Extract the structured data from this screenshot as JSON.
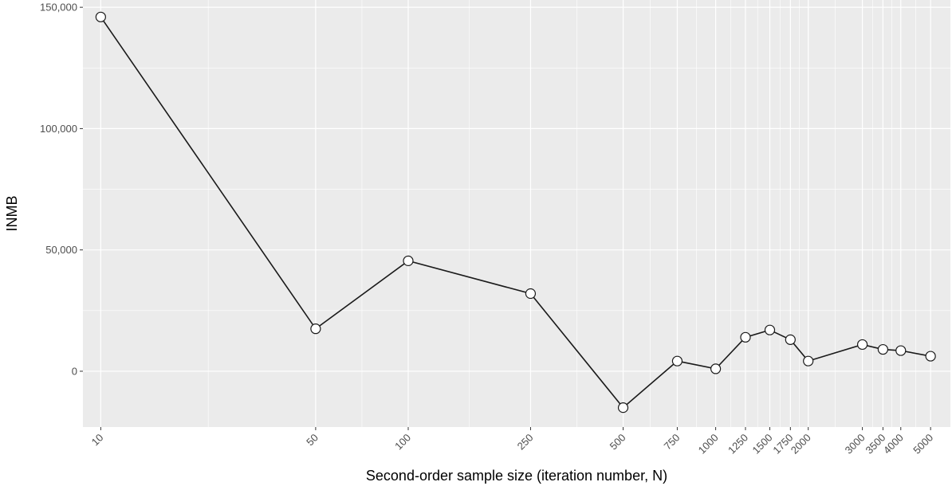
{
  "chart_data": {
    "type": "line",
    "xlabel": "Second-order sample size (iteration number, N)",
    "ylabel": "INMB",
    "x_scale": "log",
    "grid": true,
    "legend": "none",
    "xlim": [
      8.75,
      5800
    ],
    "ylim": [
      -23000,
      153000
    ],
    "x_ticks": [
      10,
      50,
      100,
      250,
      500,
      750,
      1000,
      1250,
      1500,
      1750,
      2000,
      3000,
      3500,
      4000,
      5000
    ],
    "x_tick_labels": [
      "10",
      "50",
      "100",
      "250",
      "500",
      "750",
      "1000",
      "1250",
      "1500",
      "1750",
      "2000",
      "3000",
      "3500",
      "4000",
      "5000"
    ],
    "y_ticks": [
      0,
      50000,
      100000,
      150000
    ],
    "y_tick_labels": [
      "0",
      "50,000",
      "100,000",
      "150,000"
    ],
    "series": [
      {
        "x": [
          10,
          50,
          100,
          250,
          500,
          750,
          1000,
          1250,
          1500,
          1750,
          2000,
          3000,
          3500,
          4000,
          5000
        ],
        "values": [
          146000,
          17500,
          45500,
          32000,
          -15000,
          4200,
          1000,
          14000,
          17000,
          13000,
          4200,
          11000,
          9000,
          8500,
          6200
        ]
      }
    ]
  },
  "colors": {
    "panel_background": "#EBEBEB",
    "grid_line": "#FFFFFF",
    "series_line": "#1A1A1A",
    "point_fill": "#FFFFFF"
  }
}
